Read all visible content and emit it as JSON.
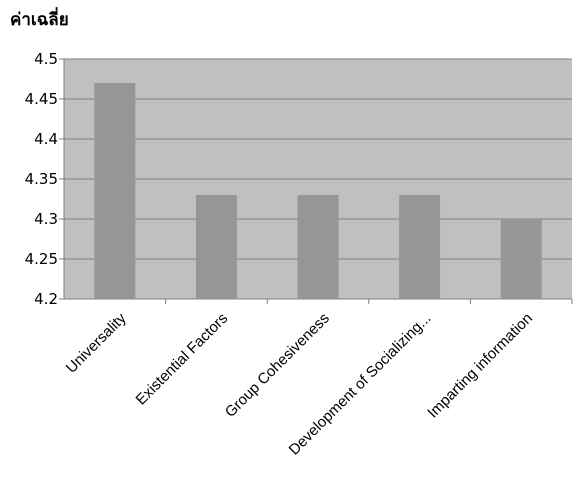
{
  "chart_data": {
    "type": "bar",
    "title": "ค่าเฉลี่ย",
    "xlabel": "",
    "ylabel": "",
    "categories": [
      "Universality",
      "Existential Factors",
      "Group Cohesiveness",
      "Development of Socializing...",
      "Imparting information"
    ],
    "values": [
      4.47,
      4.33,
      4.33,
      4.33,
      4.3
    ],
    "ylim": [
      4.2,
      4.5
    ],
    "yticks": [
      "4.2",
      "4.25",
      "4.3",
      "4.35",
      "4.4",
      "4.45",
      "4.5"
    ],
    "grid": true,
    "legend": "none",
    "colors": {
      "plot_background": "#c0c0c0",
      "bar": "#969696",
      "grid": "#808080"
    }
  }
}
